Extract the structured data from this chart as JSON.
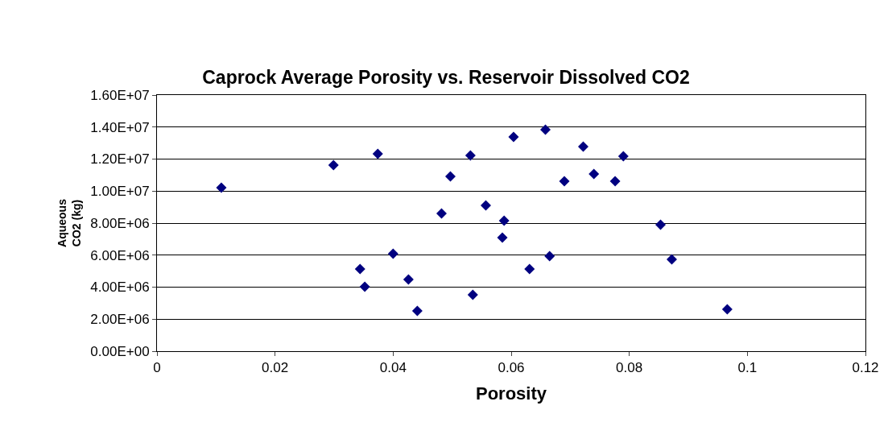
{
  "chart_data": {
    "type": "scatter",
    "title": "Caprock Average Porosity vs. Reservoir Dissolved CO2",
    "xlabel": "Porosity",
    "ylabel": "Aqueous\nCO2 (kg)",
    "x": [
      0.0109,
      0.0299,
      0.0374,
      0.0531,
      0.0604,
      0.0497,
      0.0482,
      0.0557,
      0.0588,
      0.0585,
      0.04,
      0.0344,
      0.0426,
      0.0352,
      0.0535,
      0.0441,
      0.0658,
      0.0722,
      0.079,
      0.069,
      0.074,
      0.0776,
      0.0631,
      0.0665,
      0.0853,
      0.0872,
      0.0966
    ],
    "values": [
      10210000,
      11620000,
      12330000,
      12230000,
      13380000,
      10920000,
      8600000,
      9110000,
      8150000,
      7090000,
      6090000,
      5130000,
      4480000,
      4030000,
      3520000,
      2520000,
      13840000,
      12780000,
      12180000,
      10620000,
      11070000,
      10620000,
      5130000,
      5940000,
      7900000,
      5740000,
      2620000
    ],
    "color": "#000080",
    "marker": "diamond",
    "grid": "y",
    "xlim": [
      0,
      0.12
    ],
    "xticks": [
      0,
      0.02,
      0.04,
      0.06,
      0.08,
      0.1,
      0.12
    ],
    "ylim": [
      0,
      16000000
    ],
    "yticks": [
      {
        "value": 0,
        "label": "0.00E+00"
      },
      {
        "value": 2000000,
        "label": "2.00E+06"
      },
      {
        "value": 4000000,
        "label": "4.00E+06"
      },
      {
        "value": 6000000,
        "label": "6.00E+06"
      },
      {
        "value": 8000000,
        "label": "8.00E+06"
      },
      {
        "value": 10000000,
        "label": "1.00E+07"
      },
      {
        "value": 12000000,
        "label": "1.20E+07"
      },
      {
        "value": 14000000,
        "label": "1.40E+07"
      },
      {
        "value": 16000000,
        "label": "1.60E+07"
      }
    ]
  }
}
